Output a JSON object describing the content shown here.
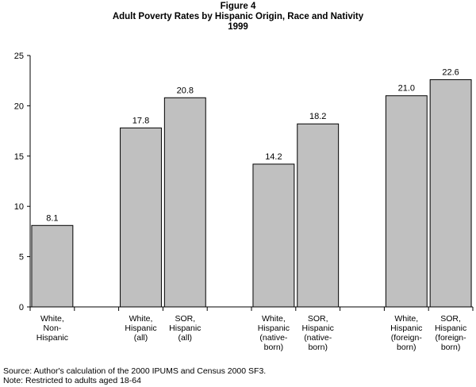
{
  "figure": {
    "label": "Figure 4",
    "title": "Adult Poverty Rates by Hispanic Origin, Race and Nativity",
    "year": "1999"
  },
  "chart_data": {
    "type": "bar",
    "title": "Adult Poverty Rates by Hispanic Origin, Race and Nativity",
    "categories": [
      [
        "White,",
        "Non-",
        "Hispanic"
      ],
      [
        "White,",
        "Hispanic",
        "(all)"
      ],
      [
        "SOR,",
        "Hispanic",
        "(all)"
      ],
      [
        "White,",
        "Hispanic",
        "(native-",
        "born)"
      ],
      [
        "SOR,",
        "Hispanic",
        "(native-",
        "born)"
      ],
      [
        "White,",
        "Hispanic",
        "(foreign-",
        "born)"
      ],
      [
        "SOR,",
        "Hispanic",
        "(foreign-",
        "born)"
      ]
    ],
    "values": [
      8.1,
      17.8,
      20.8,
      14.2,
      18.2,
      21.0,
      22.6
    ],
    "value_labels": [
      "8.1",
      "17.8",
      "20.8",
      "14.2",
      "18.2",
      "21.0",
      "22.6"
    ],
    "groups": [
      [
        0
      ],
      [
        1,
        2
      ],
      [
        3,
        4
      ],
      [
        5,
        6
      ]
    ],
    "ylim": [
      0,
      25
    ],
    "yticks": [
      0,
      5,
      10,
      15,
      20,
      25
    ],
    "xlabel": "",
    "ylabel": "",
    "grid": false,
    "colors": {
      "bar_fill": "#c0c0c0",
      "bar_stroke": "#000000"
    }
  },
  "notes": {
    "source": "Source: Author's calculation of the 2000 IPUMS and Census 2000 SF3.",
    "note": "Note: Restricted to adults aged 18-64"
  }
}
